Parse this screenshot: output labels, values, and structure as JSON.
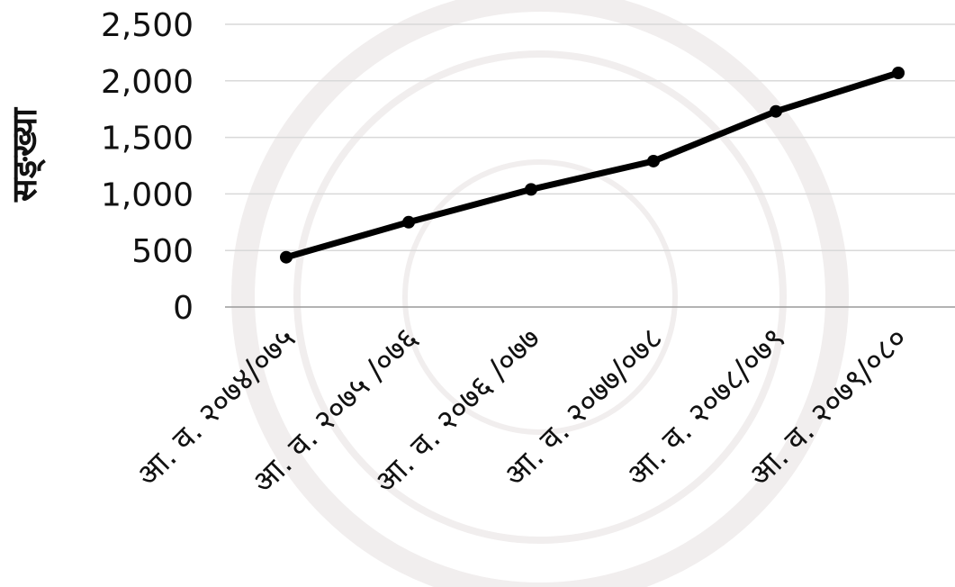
{
  "chart_data": {
    "type": "line",
    "title": "",
    "xlabel": "",
    "ylabel": "सङ्ख्या",
    "ylim": [
      0,
      2500
    ],
    "yticks": [
      "0",
      "500",
      "1,000",
      "1,500",
      "2,000",
      "2,500"
    ],
    "ytick_values": [
      0,
      500,
      1000,
      1500,
      2000,
      2500
    ],
    "categories": [
      "आ. व. २०७४/०७५",
      "आ. व. २०७५ /०७६",
      "आ. व. २०७६ /०७७",
      "आ. व. २०७७/०७८",
      "आ. व. २०७८/०७९",
      "आ. व. २०७९/०८०"
    ],
    "series": [
      {
        "values": [
          440,
          750,
          1040,
          1290,
          1730,
          2070
        ]
      }
    ],
    "grid": true,
    "legend": "none",
    "line_color": "#000000",
    "grid_color": "#d9d9d9"
  }
}
